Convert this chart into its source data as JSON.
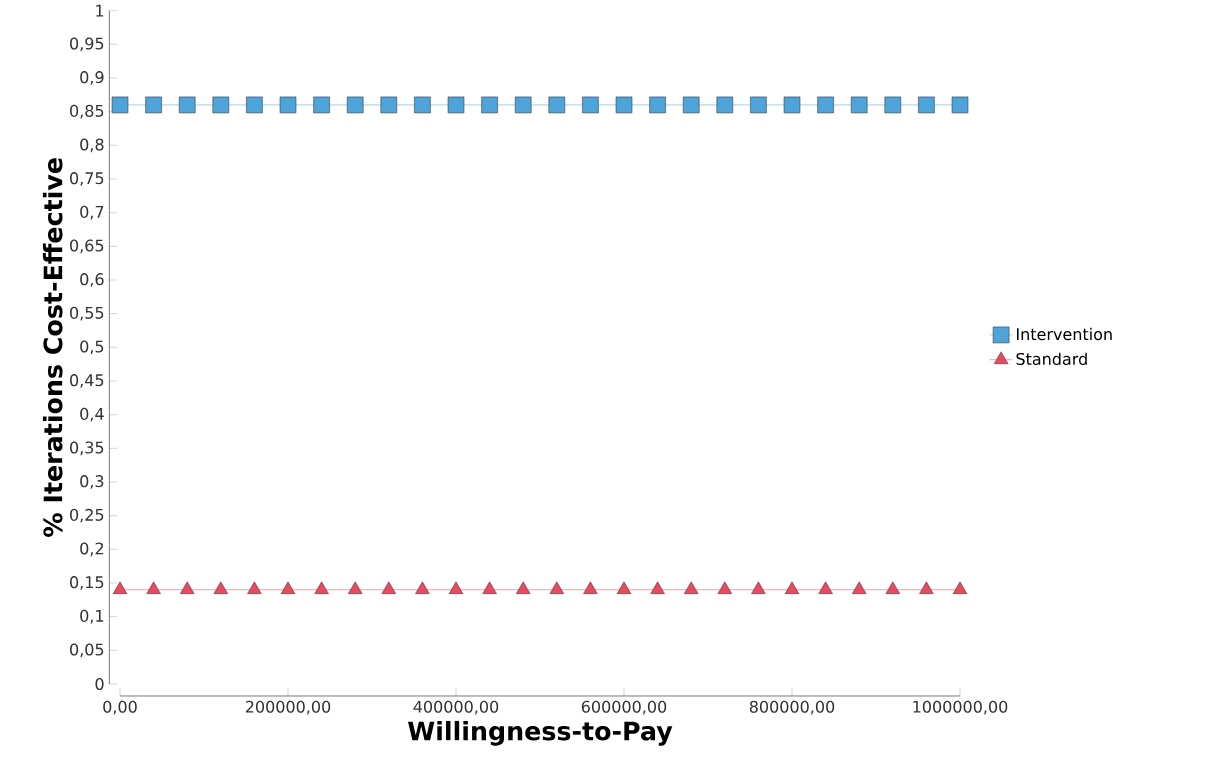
{
  "chart_data": {
    "type": "line",
    "xlabel": "Willingness-to-Pay",
    "ylabel": "% Iterations Cost-Effective",
    "x": [
      0,
      40000,
      80000,
      120000,
      160000,
      200000,
      240000,
      280000,
      320000,
      360000,
      400000,
      440000,
      480000,
      520000,
      560000,
      600000,
      640000,
      680000,
      720000,
      760000,
      800000,
      840000,
      880000,
      920000,
      960000,
      1000000
    ],
    "series": [
      {
        "name": "Intervention",
        "color": "#4ea3d8",
        "marker": "square",
        "values": [
          0.86,
          0.86,
          0.86,
          0.86,
          0.86,
          0.86,
          0.86,
          0.86,
          0.86,
          0.86,
          0.86,
          0.86,
          0.86,
          0.86,
          0.86,
          0.86,
          0.86,
          0.86,
          0.86,
          0.86,
          0.86,
          0.86,
          0.86,
          0.86,
          0.86,
          0.86
        ]
      },
      {
        "name": "Standard",
        "color": "#e8495f",
        "marker": "triangle",
        "values": [
          0.14,
          0.14,
          0.14,
          0.14,
          0.14,
          0.14,
          0.14,
          0.14,
          0.14,
          0.14,
          0.14,
          0.14,
          0.14,
          0.14,
          0.14,
          0.14,
          0.14,
          0.14,
          0.14,
          0.14,
          0.14,
          0.14,
          0.14,
          0.14,
          0.14,
          0.14
        ]
      }
    ],
    "xlim": [
      0,
      1000000
    ],
    "xticks": [
      {
        "value": 0,
        "label": "0,00"
      },
      {
        "value": 200000,
        "label": "200000,00"
      },
      {
        "value": 400000,
        "label": "400000,00"
      },
      {
        "value": 600000,
        "label": "600000,00"
      },
      {
        "value": 800000,
        "label": "800000,00"
      },
      {
        "value": 1000000,
        "label": "1000000,00"
      }
    ],
    "ylim": [
      0,
      1
    ],
    "yticks": [
      0,
      {
        "value": 0.05,
        "label": "0,05"
      },
      {
        "value": 0.1,
        "label": "0,1"
      },
      {
        "value": 0.15,
        "label": "0,15"
      },
      {
        "value": 0.2,
        "label": "0,2"
      },
      {
        "value": 0.25,
        "label": "0,25"
      },
      {
        "value": 0.3,
        "label": "0,3"
      },
      {
        "value": 0.35,
        "label": "0,35"
      },
      {
        "value": 0.4,
        "label": "0,4"
      },
      {
        "value": 0.45,
        "label": "0,45"
      },
      {
        "value": 0.5,
        "label": "0,5"
      },
      {
        "value": 0.55,
        "label": "0,55"
      },
      {
        "value": 0.6,
        "label": "0,6"
      },
      {
        "value": 0.65,
        "label": "0,65"
      },
      {
        "value": 0.7,
        "label": "0,7"
      },
      {
        "value": 0.75,
        "label": "0,75"
      },
      {
        "value": 0.8,
        "label": "0,8"
      },
      {
        "value": 0.85,
        "label": "0,85"
      },
      {
        "value": 0.9,
        "label": "0,9"
      },
      {
        "value": 0.95,
        "label": "0,95"
      },
      1
    ],
    "grid": false,
    "legend": "right"
  }
}
